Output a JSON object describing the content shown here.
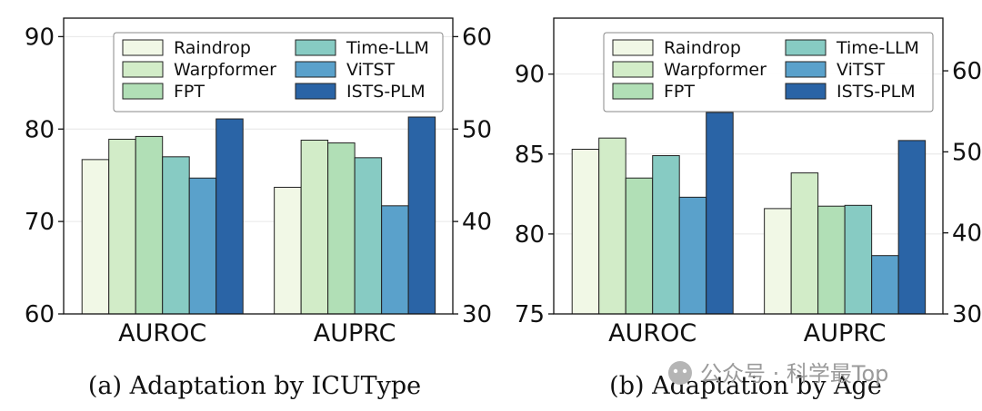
{
  "chart_data": [
    {
      "type": "bar",
      "caption": "(a)  Adaptation by ICUType",
      "categories": [
        "AUROC",
        "AUPRC"
      ],
      "series": [
        {
          "name": "Raindrop",
          "color": "#f1f8e6",
          "values": [
            76.7,
            43.7
          ]
        },
        {
          "name": "Warpformer",
          "color": "#d2ecc8",
          "values": [
            78.9,
            48.8
          ]
        },
        {
          "name": "FPT",
          "color": "#b1dfb6",
          "values": [
            79.2,
            48.5
          ]
        },
        {
          "name": "Time-LLM",
          "color": "#87cbc3",
          "values": [
            77.0,
            46.9
          ]
        },
        {
          "name": "ViTST",
          "color": "#5aa1cb",
          "values": [
            74.7,
            41.7
          ]
        },
        {
          "name": "ISTS-PLM",
          "color": "#2a64a6",
          "values": [
            81.1,
            51.3
          ]
        }
      ],
      "y_left": {
        "range": [
          60,
          92
        ],
        "ticks": [
          "60",
          "70",
          "80",
          "90"
        ]
      },
      "y_right": {
        "range": [
          30,
          62
        ],
        "ticks": [
          "30",
          "40",
          "50",
          "60"
        ]
      },
      "axis_mapping": {
        "AUROC": "left",
        "AUPRC": "right"
      },
      "grid": true,
      "legend": "top-right"
    },
    {
      "type": "bar",
      "caption": "(b)  Adaptation by Age",
      "categories": [
        "AUROC",
        "AUPRC"
      ],
      "series": [
        {
          "name": "Raindrop",
          "color": "#f1f8e6",
          "values": [
            85.3,
            43.0
          ]
        },
        {
          "name": "Warpformer",
          "color": "#d2ecc8",
          "values": [
            86.0,
            47.4
          ]
        },
        {
          "name": "FPT",
          "color": "#b1dfb6",
          "values": [
            83.5,
            43.3
          ]
        },
        {
          "name": "Time-LLM",
          "color": "#87cbc3",
          "values": [
            84.9,
            43.4
          ]
        },
        {
          "name": "ViTST",
          "color": "#5aa1cb",
          "values": [
            82.3,
            37.2
          ]
        },
        {
          "name": "ISTS-PLM",
          "color": "#2a64a6",
          "values": [
            87.6,
            51.4
          ]
        }
      ],
      "y_left": {
        "range": [
          75,
          93.5
        ],
        "ticks": [
          "75",
          "80",
          "85",
          "90"
        ]
      },
      "y_right": {
        "range": [
          30,
          66.5
        ],
        "ticks": [
          "30",
          "40",
          "50",
          "60"
        ]
      },
      "axis_mapping": {
        "AUROC": "left",
        "AUPRC": "right"
      },
      "grid": true,
      "legend": "top-right"
    }
  ],
  "watermark": "公众号 · 科学最Top"
}
